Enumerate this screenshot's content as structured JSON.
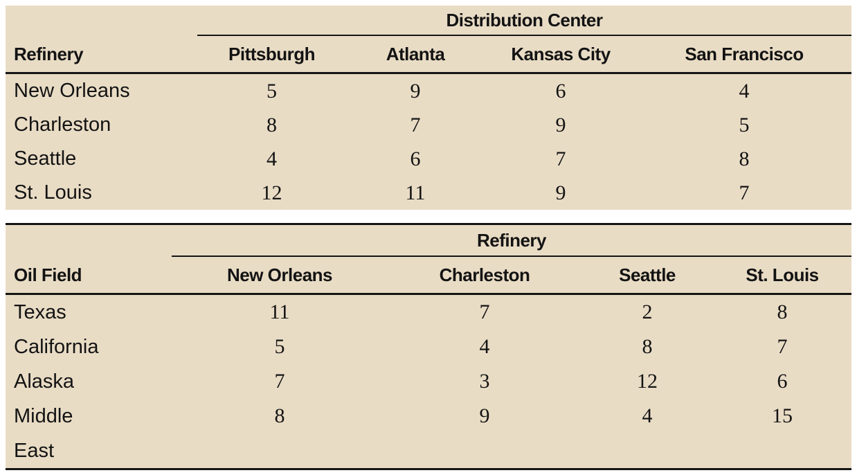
{
  "colors": {
    "panel_background": "#e9dcc5",
    "rule_line": "#151515",
    "text": "#131313",
    "page_background": "#ffffff"
  },
  "tables": [
    {
      "span_header": "Distribution Center",
      "row_header_label": "Refinery",
      "columns": [
        "Pittsburgh",
        "Atlanta",
        "Kansas City",
        "San Francisco"
      ],
      "rows": [
        {
          "label": "New Orleans",
          "values": [
            "5",
            "9",
            "6",
            "4"
          ]
        },
        {
          "label": "Charleston",
          "values": [
            "8",
            "7",
            "9",
            "5"
          ]
        },
        {
          "label": "Seattle",
          "values": [
            "4",
            "6",
            "7",
            "8"
          ]
        },
        {
          "label": "St. Louis",
          "values": [
            "12",
            "11",
            "9",
            "7"
          ]
        }
      ]
    },
    {
      "span_header": "Refinery",
      "row_header_label": "Oil Field",
      "columns": [
        "New Orleans",
        "Charleston",
        "Seattle",
        "St. Louis"
      ],
      "rows": [
        {
          "label": "Texas",
          "values": [
            "11",
            "7",
            "2",
            "8"
          ]
        },
        {
          "label": "California",
          "values": [
            "5",
            "4",
            "8",
            "7"
          ]
        },
        {
          "label": "Alaska",
          "values": [
            "7",
            "3",
            "12",
            "6"
          ]
        },
        {
          "label": "Middle\nEast",
          "values": [
            "8",
            "9",
            "4",
            "15"
          ]
        }
      ]
    }
  ]
}
